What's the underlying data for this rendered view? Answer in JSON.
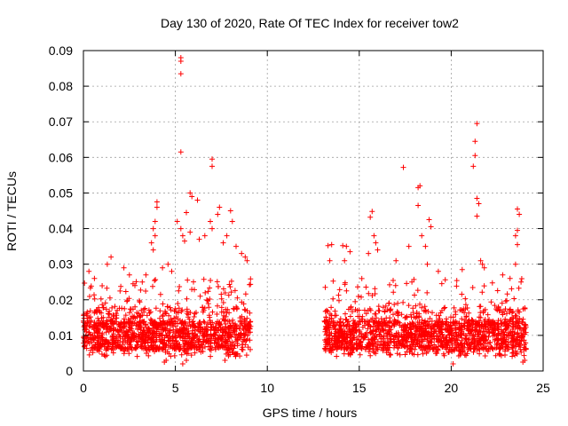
{
  "chart_data": {
    "type": "scatter",
    "title": "Day 130 of 2020, Rate Of TEC Index for receiver tow2",
    "xlabel": "GPS time / hours",
    "ylabel": "ROTI / TECUs",
    "xlim": [
      0,
      25
    ],
    "ylim": [
      0,
      0.09
    ],
    "x_ticks": [
      0,
      5,
      10,
      15,
      20,
      25
    ],
    "x_tick_labels": [
      "0",
      "5",
      "10",
      "15",
      "20",
      "25"
    ],
    "y_ticks": [
      0,
      0.01,
      0.02,
      0.03,
      0.04,
      0.05,
      0.06,
      0.07,
      0.08,
      0.09
    ],
    "y_tick_labels": [
      "0",
      "0.01",
      "0.02",
      "0.03",
      "0.04",
      "0.05",
      "0.06",
      "0.07",
      "0.08",
      "0.09"
    ],
    "grid": true,
    "marker": "+",
    "color": "#ff0000",
    "data_segments": [
      {
        "x_start": 0.0,
        "x_end": 9.1
      },
      {
        "x_start": 13.1,
        "x_end": 24.1
      }
    ],
    "points": [
      [
        5.3,
        0.088
      ],
      [
        5.3,
        0.087
      ],
      [
        5.3,
        0.0835
      ],
      [
        5.3,
        0.0615
      ],
      [
        7.0,
        0.0595
      ],
      [
        7.0,
        0.0575
      ],
      [
        21.4,
        0.0695
      ],
      [
        21.3,
        0.0645
      ],
      [
        21.3,
        0.0605
      ],
      [
        21.2,
        0.0575
      ],
      [
        17.4,
        0.0572
      ],
      [
        18.2,
        0.0515
      ],
      [
        18.3,
        0.052
      ],
      [
        5.8,
        0.05
      ],
      [
        5.9,
        0.049
      ],
      [
        6.2,
        0.048
      ],
      [
        4.0,
        0.0475
      ],
      [
        4.0,
        0.046
      ],
      [
        7.4,
        0.046
      ],
      [
        7.3,
        0.044
      ],
      [
        5.6,
        0.0445
      ],
      [
        21.4,
        0.0485
      ],
      [
        21.5,
        0.047
      ],
      [
        21.4,
        0.0435
      ],
      [
        15.7,
        0.0448
      ],
      [
        15.6,
        0.0432
      ],
      [
        18.2,
        0.0465
      ],
      [
        18.8,
        0.0425
      ],
      [
        18.9,
        0.0405
      ],
      [
        23.6,
        0.0455
      ],
      [
        23.7,
        0.044
      ],
      [
        23.5,
        0.038
      ],
      [
        23.6,
        0.0355
      ],
      [
        23.6,
        0.0395
      ],
      [
        3.9,
        0.042
      ],
      [
        3.8,
        0.04
      ],
      [
        3.9,
        0.038
      ],
      [
        3.7,
        0.036
      ],
      [
        3.8,
        0.034
      ],
      [
        5.1,
        0.042
      ],
      [
        5.3,
        0.04
      ],
      [
        5.4,
        0.038
      ],
      [
        5.5,
        0.0365
      ],
      [
        5.8,
        0.039
      ],
      [
        6.3,
        0.037
      ],
      [
        6.6,
        0.038
      ],
      [
        6.9,
        0.042
      ],
      [
        7.0,
        0.04
      ],
      [
        7.6,
        0.036
      ],
      [
        7.8,
        0.038
      ],
      [
        8.0,
        0.045
      ],
      [
        8.1,
        0.042
      ],
      [
        8.3,
        0.035
      ],
      [
        8.6,
        0.033
      ],
      [
        8.8,
        0.032
      ],
      [
        8.9,
        0.031
      ],
      [
        13.3,
        0.0352
      ],
      [
        13.5,
        0.0355
      ],
      [
        14.1,
        0.0352
      ],
      [
        14.3,
        0.035
      ],
      [
        14.5,
        0.0335
      ],
      [
        13.4,
        0.031
      ],
      [
        14.2,
        0.031
      ],
      [
        15.8,
        0.038
      ],
      [
        15.9,
        0.036
      ],
      [
        16.0,
        0.034
      ],
      [
        15.5,
        0.033
      ],
      [
        17.0,
        0.031
      ],
      [
        17.7,
        0.035
      ],
      [
        18.4,
        0.038
      ],
      [
        18.6,
        0.035
      ],
      [
        18.7,
        0.03
      ],
      [
        19.3,
        0.028
      ],
      [
        20.6,
        0.0285
      ],
      [
        21.6,
        0.031
      ],
      [
        21.7,
        0.03
      ],
      [
        21.8,
        0.029
      ],
      [
        22.8,
        0.027
      ],
      [
        23.2,
        0.026
      ],
      [
        23.5,
        0.03
      ],
      [
        23.8,
        0.025
      ],
      [
        0.3,
        0.028
      ],
      [
        0.6,
        0.026
      ],
      [
        1.5,
        0.032
      ],
      [
        1.3,
        0.03
      ],
      [
        2.2,
        0.029
      ],
      [
        2.5,
        0.027
      ],
      [
        2.8,
        0.024
      ],
      [
        3.2,
        0.025
      ],
      [
        3.4,
        0.027
      ],
      [
        4.3,
        0.029
      ],
      [
        4.6,
        0.03
      ],
      [
        4.8,
        0.028
      ],
      [
        0.0,
        0.014
      ],
      [
        0.1,
        0.012
      ],
      [
        5.4,
        0.002
      ],
      [
        5.6,
        0.003
      ],
      [
        4.4,
        0.0025
      ],
      [
        4.5,
        0.003
      ],
      [
        7.7,
        0.003
      ],
      [
        20.1,
        0.002
      ],
      [
        23.9,
        0.0025
      ],
      [
        24.0,
        0.003
      ],
      [
        13.2,
        0.015
      ],
      [
        13.2,
        0.012
      ],
      [
        13.3,
        0.0085
      ],
      [
        14.0,
        0.0065
      ],
      [
        16.3,
        0.006
      ],
      [
        17.3,
        0.007
      ],
      [
        19.0,
        0.006
      ],
      [
        22.0,
        0.0055
      ]
    ]
  }
}
